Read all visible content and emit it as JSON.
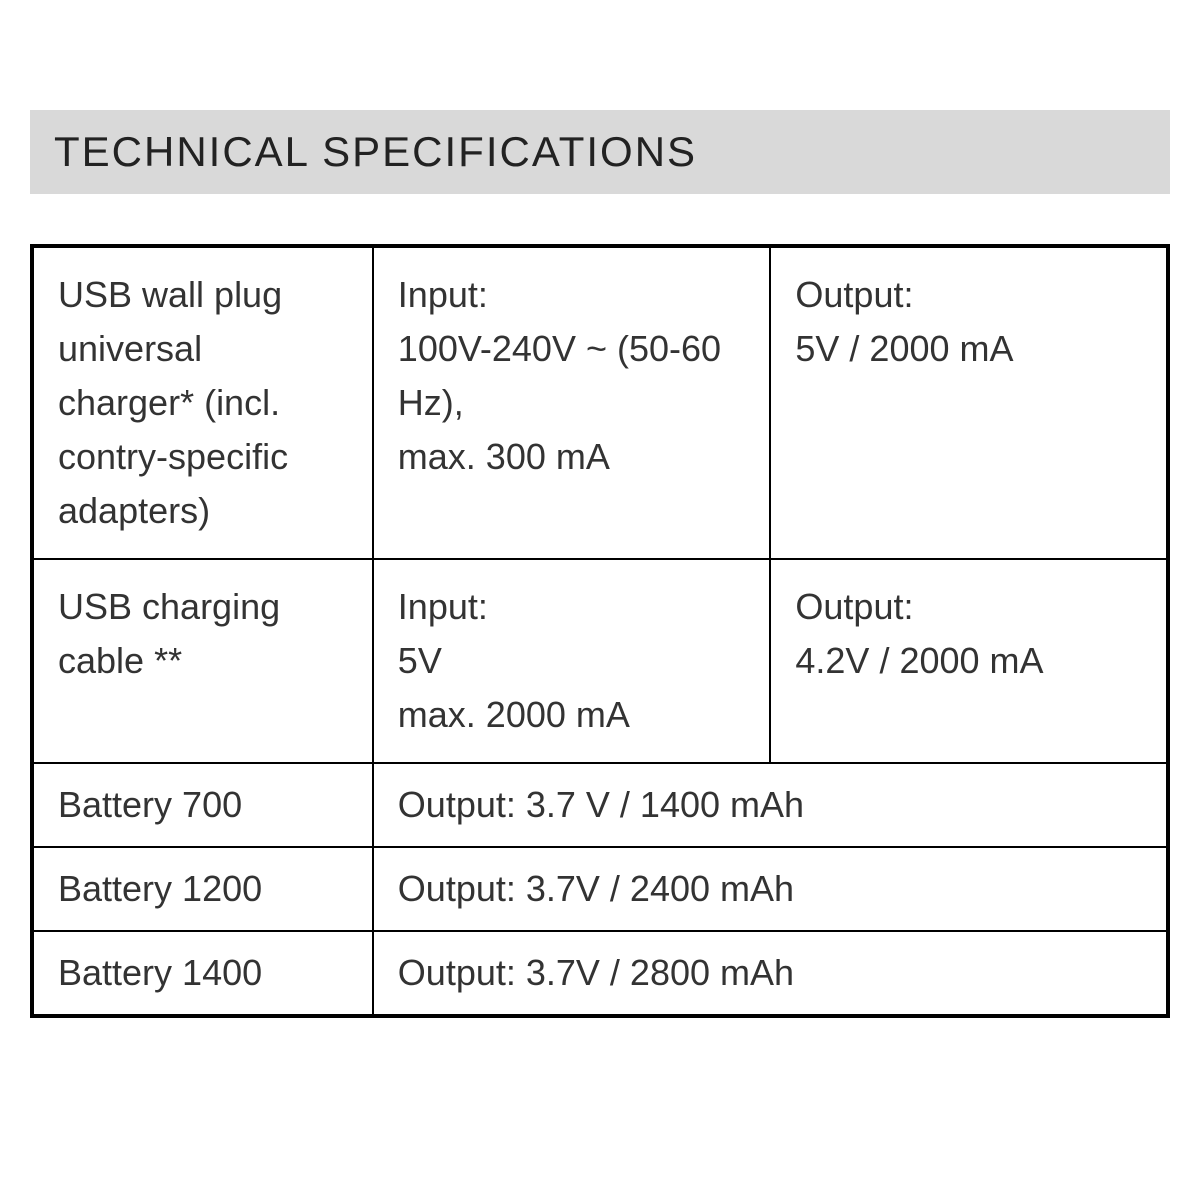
{
  "header": {
    "title": "TECHNICAL SPECIFICATIONS"
  },
  "table": {
    "header_bg": "#d9d9d9",
    "border_color": "#000000",
    "text_color": "#333333",
    "font_size": 36,
    "rows": [
      {
        "col1": "USB wall plug universal charger* (incl. contry-specific adapters)",
        "col2": "Input:\n100V-240V ~ (50-60 Hz),\nmax. 300 mA",
        "col3": "Output:\n5V / 2000 mA",
        "span": 3
      },
      {
        "col1": "USB charging cable **",
        "col2": "Input:\n5V\nmax. 2000 mA",
        "col3": "Output:\n4.2V / 2000 mA",
        "span": 3
      },
      {
        "col1": "Battery 700",
        "col2": "Output: 3.7 V / 1400 mAh",
        "span": 2
      },
      {
        "col1": "Battery 1200",
        "col2": "Output: 3.7V / 2400 mAh",
        "span": 2
      },
      {
        "col1": "Battery 1400",
        "col2": "Output: 3.7V / 2800 mAh",
        "span": 2
      }
    ]
  }
}
